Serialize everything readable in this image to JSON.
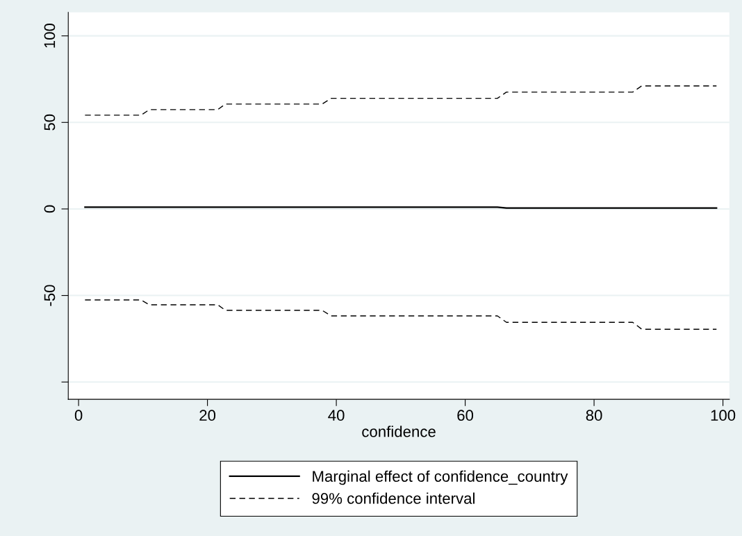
{
  "chart_data": {
    "type": "line",
    "xlabel": "confidence",
    "series": [
      {
        "name": "Marginal effect of confidence_country",
        "color": "#000000",
        "line_style": "solid",
        "x": [
          1,
          65,
          66.4,
          99
        ],
        "values": [
          1,
          1,
          0.5,
          0.5
        ]
      },
      {
        "name": "99% confidence interval",
        "color": "#000000",
        "line_style": "dashed",
        "x": [
          1,
          9.7,
          11,
          21.6,
          22.8,
          37.8,
          39.2,
          65,
          66.4,
          86,
          87.4,
          99
        ],
        "values": [
          54.2,
          54.2,
          57.4,
          57.4,
          60.6,
          60.6,
          63.9,
          63.9,
          67.5,
          67.5,
          71.1,
          71.1
        ]
      },
      {
        "color": "#000000",
        "line_style": "dashed",
        "x": [
          1,
          9.7,
          11,
          21.6,
          22.8,
          37.8,
          39.2,
          65,
          66.4,
          86,
          87.4,
          99
        ],
        "values": [
          -52.6,
          -52.6,
          -55.4,
          -55.4,
          -58.6,
          -58.6,
          -61.8,
          -61.8,
          -65.5,
          -65.5,
          -69.5,
          -69.5
        ]
      }
    ],
    "xlim": [
      -1.6,
      101
    ],
    "xticks": [
      0,
      20,
      40,
      60,
      80,
      100
    ],
    "ylim": [
      -110,
      113.6
    ],
    "yticks": [
      {
        "value": -100,
        "label": null
      },
      -50,
      0,
      50,
      100
    ],
    "grid": "y",
    "legend": "bottom",
    "marker": "none"
  }
}
